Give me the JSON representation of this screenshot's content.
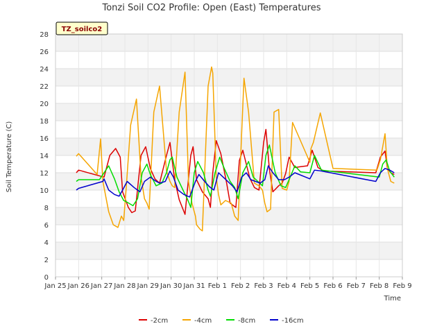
{
  "chart_data": {
    "type": "line",
    "title": "Tonzi Soil CO2 Profile: Open (East) Temperatures",
    "xlabel": "Time",
    "ylabel": "Soil Temperature (C)",
    "badge": "TZ_soilco2",
    "ylim": [
      0,
      28
    ],
    "yticks": [
      0,
      2,
      4,
      6,
      8,
      10,
      12,
      14,
      16,
      18,
      20,
      22,
      24,
      26,
      28
    ],
    "xlim": [
      0,
      15
    ],
    "xticks": [
      {
        "value": 0,
        "label": "Jan 25"
      },
      {
        "value": 1,
        "label": "Jan 26"
      },
      {
        "value": 2,
        "label": "Jan 27"
      },
      {
        "value": 3,
        "label": "Jan 28"
      },
      {
        "value": 4,
        "label": "Jan 29"
      },
      {
        "value": 5,
        "label": "Jan 30"
      },
      {
        "value": 6,
        "label": "Jan 31"
      },
      {
        "value": 7,
        "label": "Feb 1"
      },
      {
        "value": 8,
        "label": "Feb 2"
      },
      {
        "value": 9,
        "label": "Feb 3"
      },
      {
        "value": 10,
        "label": "Feb 4"
      },
      {
        "value": 11,
        "label": "Feb 5"
      },
      {
        "value": 12,
        "label": "Feb 6"
      },
      {
        "value": 13,
        "label": "Feb 7"
      },
      {
        "value": 14,
        "label": "Feb 8"
      },
      {
        "value": 15,
        "label": "Feb 9"
      }
    ],
    "grid": true,
    "legend_position": "bottom",
    "series": [
      {
        "name": "-2cm",
        "color": "#dd0000",
        "x": [
          0.9,
          1.0,
          2.1,
          2.35,
          2.6,
          2.8,
          2.9,
          3.15,
          3.3,
          3.45,
          3.7,
          3.9,
          4.1,
          4.3,
          4.5,
          4.8,
          4.95,
          5.15,
          5.35,
          5.6,
          5.85,
          5.95,
          6.1,
          6.35,
          6.6,
          6.7,
          6.8,
          6.95,
          7.15,
          7.4,
          7.55,
          7.8,
          7.95,
          8.1,
          8.4,
          8.6,
          8.8,
          9.0,
          9.1,
          9.25,
          9.4,
          9.65,
          9.8,
          9.95,
          10.1,
          10.35,
          10.6,
          10.9,
          11.1,
          11.35,
          11.6,
          13.85,
          14.05,
          14.25,
          14.35,
          14.5,
          14.65
        ],
        "y": [
          12.0,
          12.3,
          11.5,
          14.0,
          14.8,
          13.8,
          9.8,
          8.0,
          7.4,
          7.6,
          14.0,
          15.0,
          12.5,
          11.3,
          10.8,
          14.0,
          15.5,
          11.2,
          8.9,
          7.2,
          14.0,
          15.0,
          11.2,
          9.8,
          9.0,
          8.0,
          12.0,
          15.7,
          14.2,
          10.8,
          8.5,
          8.0,
          13.4,
          14.6,
          11.4,
          10.3,
          10.0,
          15.5,
          17.0,
          12.4,
          9.8,
          10.5,
          10.8,
          11.9,
          13.8,
          12.6,
          12.7,
          12.8,
          14.6,
          12.6,
          12.2,
          12.0,
          13.8,
          14.5,
          12.5,
          12.0,
          11.8
        ]
      },
      {
        "name": "-4cm",
        "color": "#f5a500",
        "x": [
          0.9,
          1.0,
          1.8,
          1.95,
          2.05,
          2.3,
          2.5,
          2.7,
          2.85,
          2.95,
          3.05,
          3.25,
          3.5,
          3.7,
          3.85,
          3.95,
          4.05,
          4.25,
          4.5,
          4.8,
          4.95,
          5.05,
          5.15,
          5.35,
          5.6,
          5.75,
          5.9,
          6.05,
          6.1,
          6.25,
          6.35,
          6.6,
          6.75,
          6.8,
          6.95,
          7.05,
          7.15,
          7.35,
          7.6,
          7.75,
          7.9,
          8.05,
          8.15,
          8.35,
          8.6,
          8.8,
          8.95,
          9.05,
          9.15,
          9.3,
          9.45,
          9.65,
          9.8,
          10.0,
          10.1,
          10.25,
          11.0,
          11.05,
          11.15,
          11.45,
          12.0,
          13.9,
          14.05,
          14.25,
          14.35,
          14.5,
          14.65
        ],
        "y": [
          13.9,
          14.2,
          11.8,
          15.9,
          11.0,
          7.5,
          6.0,
          5.7,
          7.0,
          6.5,
          10.0,
          17.5,
          20.5,
          11.5,
          9.0,
          8.5,
          7.8,
          19.0,
          22.0,
          12.2,
          11.0,
          10.5,
          10.3,
          19.0,
          23.6,
          11.0,
          8.5,
          7.0,
          6.0,
          5.5,
          5.3,
          22.0,
          24.2,
          23.5,
          11.5,
          9.5,
          8.3,
          8.8,
          8.5,
          7.0,
          6.5,
          16.5,
          22.9,
          19.0,
          10.8,
          10.5,
          10.0,
          8.5,
          7.5,
          7.8,
          19.0,
          19.3,
          10.2,
          10.0,
          11.0,
          17.8,
          13.2,
          14.8,
          15.5,
          18.9,
          12.5,
          12.3,
          13.5,
          16.5,
          12.5,
          11.0,
          10.8
        ]
      },
      {
        "name": "-8cm",
        "color": "#00dd00",
        "x": [
          0.9,
          1.0,
          1.9,
          2.1,
          2.3,
          2.55,
          2.75,
          2.95,
          3.1,
          3.35,
          3.55,
          3.75,
          3.95,
          4.1,
          4.35,
          4.6,
          4.8,
          4.95,
          5.05,
          5.25,
          5.55,
          5.7,
          5.85,
          6.0,
          6.15,
          6.4,
          6.6,
          6.7,
          6.9,
          7.1,
          7.3,
          7.55,
          7.75,
          7.9,
          8.1,
          8.35,
          8.55,
          8.75,
          8.95,
          9.1,
          9.25,
          9.5,
          9.75,
          9.95,
          10.15,
          10.35,
          10.6,
          11.0,
          11.2,
          11.5,
          14.0,
          14.15,
          14.3,
          14.45,
          14.65
        ],
        "y": [
          11.0,
          11.2,
          11.2,
          12.0,
          12.8,
          11.3,
          9.8,
          8.8,
          8.6,
          8.2,
          9.0,
          12.0,
          13.0,
          11.8,
          10.5,
          10.8,
          12.0,
          13.5,
          13.8,
          11.5,
          9.8,
          9.0,
          8.0,
          12.0,
          13.3,
          12.0,
          10.0,
          9.3,
          12.0,
          13.8,
          12.5,
          11.0,
          10.3,
          9.0,
          12.0,
          13.3,
          11.5,
          11.0,
          10.5,
          14.0,
          15.2,
          12.0,
          10.5,
          10.3,
          11.5,
          12.8,
          12.1,
          12.0,
          14.0,
          12.3,
          11.5,
          13.0,
          13.5,
          12.2,
          11.5
        ]
      },
      {
        "name": "-16cm",
        "color": "#0000cc",
        "x": [
          0.9,
          1.0,
          2.05,
          2.1,
          2.3,
          2.55,
          2.75,
          2.9,
          3.1,
          3.4,
          3.65,
          3.85,
          4.1,
          4.3,
          4.5,
          4.75,
          4.95,
          5.1,
          5.3,
          5.55,
          5.8,
          6.05,
          6.2,
          6.45,
          6.65,
          6.85,
          7.05,
          7.25,
          7.45,
          7.65,
          7.85,
          8.05,
          8.25,
          8.45,
          8.65,
          8.85,
          9.05,
          9.2,
          9.4,
          9.65,
          9.9,
          10.1,
          10.35,
          11.0,
          11.2,
          11.5,
          13.85,
          14.05,
          14.25,
          14.45,
          14.65
        ],
        "y": [
          10.0,
          10.2,
          11.0,
          11.3,
          10.0,
          9.5,
          9.3,
          10.0,
          11.0,
          10.3,
          9.8,
          11.0,
          11.5,
          11.1,
          10.8,
          11.0,
          12.2,
          11.5,
          10.0,
          9.5,
          9.2,
          11.0,
          11.8,
          11.0,
          10.4,
          10.0,
          12.0,
          11.5,
          11.0,
          10.5,
          9.8,
          11.5,
          12.0,
          11.2,
          11.0,
          10.8,
          11.2,
          12.8,
          12.0,
          11.2,
          11.2,
          11.5,
          12.0,
          11.3,
          12.3,
          12.2,
          11.0,
          12.0,
          12.5,
          12.3,
          12.0
        ]
      }
    ]
  }
}
